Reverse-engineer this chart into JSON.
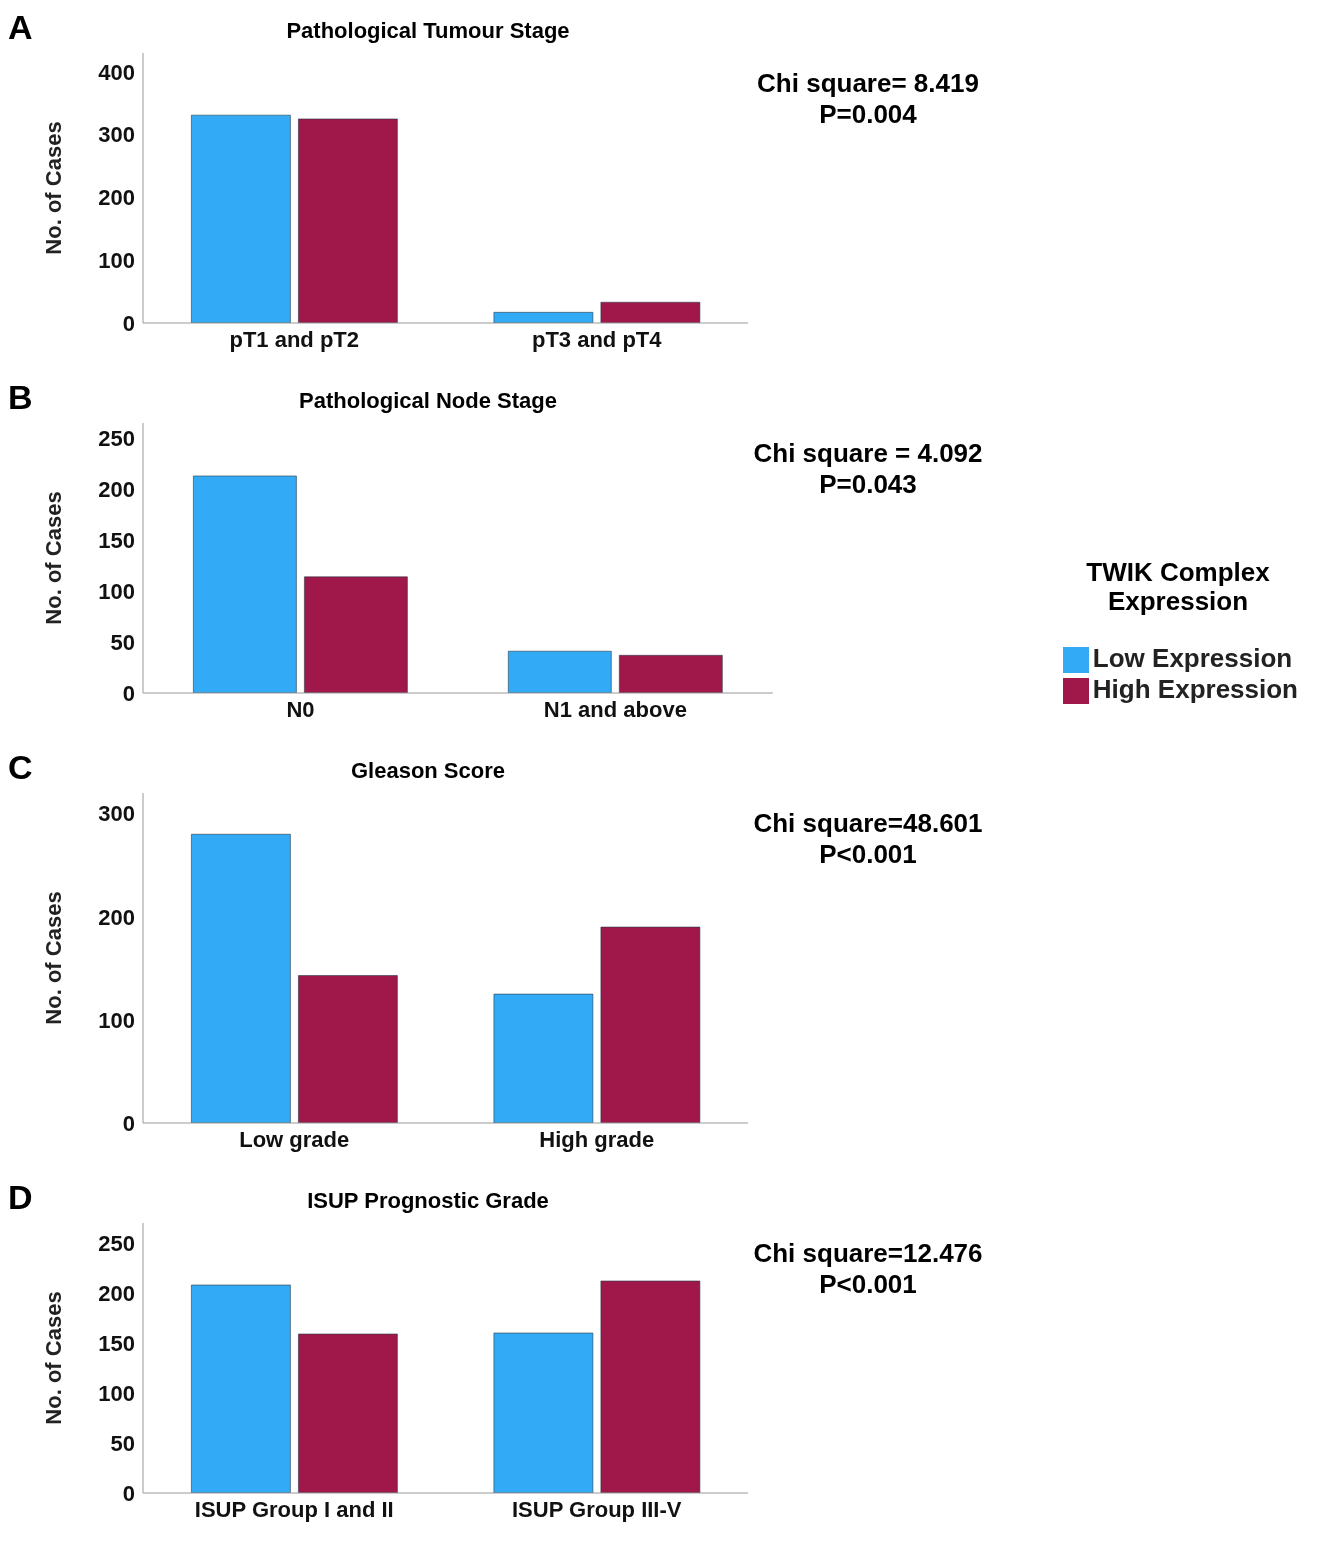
{
  "chart_data": [
    {
      "type": "bar",
      "title": "Pathological Tumour Stage",
      "ylabel": "No. of Cases",
      "categories": [
        "pT1 and pT2",
        "pT3 and pT4"
      ],
      "series": [
        {
          "color": "#33aaf5",
          "values": [
            331,
            17
          ]
        },
        {
          "color": "#a0174a",
          "values": [
            325,
            33
          ]
        }
      ],
      "ylim": [
        0,
        430
      ],
      "yticks": [
        0,
        100,
        200,
        300,
        400
      ],
      "grid": false,
      "legend": false,
      "annotations": [
        "A",
        "Chi square= 8.419",
        "P=0.004"
      ]
    },
    {
      "type": "bar",
      "title": "Pathological Node Stage",
      "ylabel": "No. of Cases",
      "legend_title": "TWIK Complex Expression",
      "categories": [
        "N0",
        "N1 and above"
      ],
      "series": [
        {
          "name": "Low Expression",
          "color": "#33aaf5",
          "values": [
            213,
            41
          ]
        },
        {
          "name": "High Expression",
          "color": "#a0174a",
          "values": [
            114,
            37
          ]
        }
      ],
      "ylim": [
        0,
        265
      ],
      "yticks": [
        0,
        50,
        100,
        150,
        200,
        250
      ],
      "grid": false,
      "legend": "right",
      "annotations": [
        "B",
        "Chi square = 4.092",
        "P=0.043"
      ]
    },
    {
      "type": "bar",
      "title": "Gleason Score",
      "ylabel": "No. of Cases",
      "categories": [
        "Low grade",
        "High grade"
      ],
      "series": [
        {
          "color": "#33aaf5",
          "values": [
            280,
            125
          ]
        },
        {
          "color": "#a0174a",
          "values": [
            143,
            190
          ]
        }
      ],
      "ylim": [
        0,
        320
      ],
      "yticks": [
        0,
        100,
        200,
        300
      ],
      "grid": false,
      "legend": false,
      "annotations": [
        "C",
        "Chi square=48.601",
        "P<0.001"
      ]
    },
    {
      "type": "bar",
      "title": "ISUP Prognostic Grade",
      "ylabel": "No. of Cases",
      "categories": [
        "ISUP Group I and II",
        "ISUP Group III-V"
      ],
      "series": [
        {
          "color": "#33aaf5",
          "values": [
            208,
            160
          ]
        },
        {
          "color": "#a0174a",
          "values": [
            159,
            212
          ]
        }
      ],
      "ylim": [
        0,
        270
      ],
      "yticks": [
        0,
        50,
        100,
        150,
        200,
        250
      ],
      "grid": false,
      "legend": false,
      "annotations": [
        "D",
        "Chi square=12.476",
        "P<0.001"
      ]
    }
  ]
}
